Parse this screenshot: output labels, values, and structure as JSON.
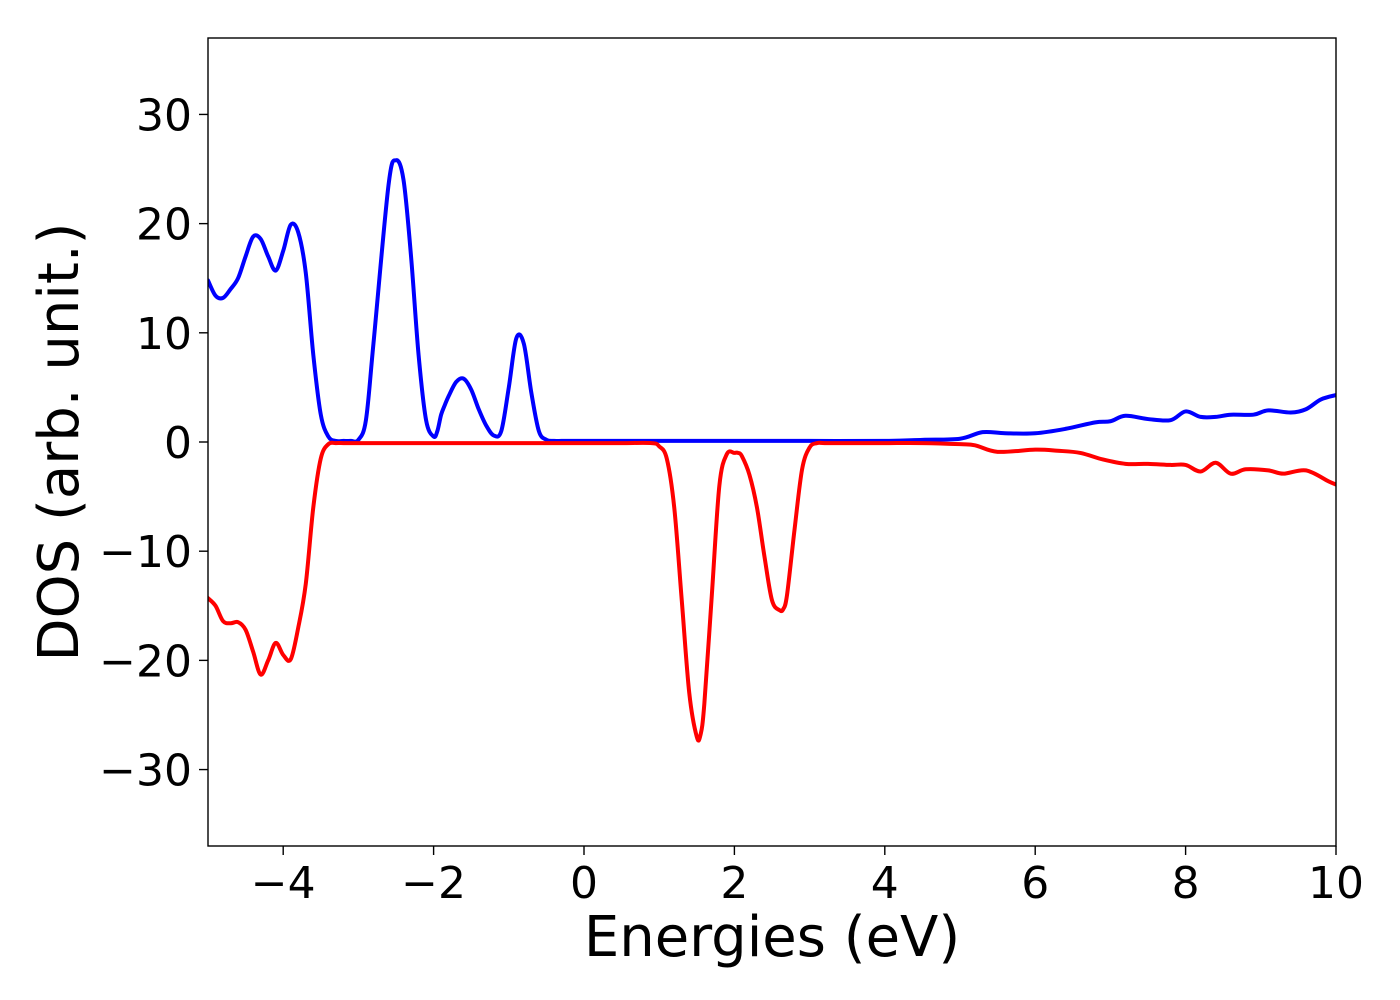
{
  "chart_data": {
    "type": "line",
    "title": "",
    "xlabel": "Energies (eV)",
    "ylabel": "DOS (arb. unit.)",
    "xlim": [
      -5,
      10
    ],
    "ylim": [
      -37,
      37
    ],
    "xticks": [
      -4,
      -2,
      0,
      2,
      4,
      6,
      8,
      10
    ],
    "xtick_labels": [
      "−4",
      "−2",
      "0",
      "2",
      "4",
      "6",
      "8",
      "10"
    ],
    "yticks": [
      30,
      20,
      10,
      0,
      -10,
      -20,
      -30
    ],
    "ytick_labels": [
      "30",
      "20",
      "10",
      "0",
      "−10",
      "−20",
      "−30"
    ],
    "grid": false,
    "legend": "none",
    "series": [
      {
        "color": "#0000ff",
        "x": [
          -5.0,
          -4.9,
          -4.8,
          -4.7,
          -4.6,
          -4.5,
          -4.4,
          -4.3,
          -4.2,
          -4.1,
          -4.0,
          -3.9,
          -3.8,
          -3.7,
          -3.6,
          -3.5,
          -3.4,
          -3.3,
          -3.2,
          -3.1,
          -3.0,
          -2.9,
          -2.8,
          -2.6,
          -2.5,
          -2.4,
          -2.3,
          -2.2,
          -2.1,
          -2.0,
          -1.95,
          -1.9,
          -1.85,
          -1.8,
          -1.7,
          -1.6,
          -1.5,
          -1.4,
          -1.3,
          -1.2,
          -1.1,
          -1.0,
          -0.9,
          -0.8,
          -0.7,
          -0.6,
          -0.5,
          -0.4,
          -0.3,
          -0.2,
          -0.1,
          0.0,
          0.1,
          0.2,
          0.3,
          0.4,
          0.5,
          0.55,
          0.6,
          0.7,
          0.8,
          0.9,
          1.0,
          1.5,
          2.0,
          3.0,
          4.0,
          4.5,
          5.0,
          5.3,
          5.6,
          6.0,
          6.4,
          6.8,
          7.0,
          7.2,
          7.5,
          7.8,
          8.0,
          8.2,
          8.4,
          8.6,
          8.9,
          9.1,
          9.4,
          9.6,
          9.8,
          10.0
        ],
        "y": [
          14.8,
          13.4,
          13.2,
          14.0,
          15.0,
          17.0,
          18.8,
          18.6,
          17.0,
          15.7,
          17.5,
          19.9,
          19.2,
          15.5,
          8.0,
          2.5,
          0.5,
          0.1,
          0.1,
          0.1,
          0.2,
          2.0,
          9.0,
          23.5,
          25.8,
          24.0,
          17.0,
          8.0,
          2.0,
          0.5,
          1.0,
          2.5,
          3.4,
          4.2,
          5.5,
          5.8,
          4.8,
          3.0,
          1.5,
          0.6,
          1.0,
          5.0,
          9.5,
          9.0,
          4.5,
          1.0,
          0.2,
          0.1,
          0.1,
          0.1,
          0.1,
          0.1,
          0.1,
          0.1,
          0.1,
          0.1,
          0.1,
          0.1,
          0.1,
          0.1,
          0.1,
          0.1,
          0.1,
          0.1,
          0.1,
          0.1,
          0.1,
          0.2,
          0.3,
          0.9,
          0.8,
          0.8,
          1.2,
          1.8,
          1.9,
          2.4,
          2.1,
          2.0,
          2.8,
          2.3,
          2.3,
          2.5,
          2.5,
          2.9,
          2.7,
          3.0,
          3.9,
          4.3
        ]
      },
      {
        "color": "#ff0000",
        "x": [
          -5.0,
          -4.9,
          -4.8,
          -4.7,
          -4.6,
          -4.5,
          -4.4,
          -4.3,
          -4.2,
          -4.1,
          -4.0,
          -3.9,
          -3.8,
          -3.7,
          -3.6,
          -3.5,
          -3.4,
          -3.3,
          -3.2,
          -3.1,
          -3.0,
          -2.9,
          -2.8,
          -2.7,
          -2.6,
          -2.5,
          -2.0,
          -1.0,
          0.0,
          0.5,
          0.9,
          1.0,
          1.1,
          1.2,
          1.3,
          1.4,
          1.5,
          1.55,
          1.6,
          1.7,
          1.8,
          1.9,
          2.0,
          2.05,
          2.1,
          2.2,
          2.3,
          2.4,
          2.5,
          2.6,
          2.65,
          2.7,
          2.8,
          2.9,
          3.0,
          3.1,
          3.2,
          3.5,
          4.0,
          4.5,
          5.0,
          5.2,
          5.5,
          6.0,
          6.3,
          6.6,
          6.9,
          7.2,
          7.5,
          7.8,
          8.0,
          8.2,
          8.4,
          8.6,
          8.8,
          9.1,
          9.3,
          9.6,
          9.9,
          10.0
        ],
        "y": [
          -14.3,
          -15.0,
          -16.4,
          -16.6,
          -16.5,
          -17.2,
          -19.2,
          -21.3,
          -20.0,
          -18.4,
          -19.5,
          -19.9,
          -17.0,
          -13.0,
          -6.0,
          -1.5,
          -0.2,
          -0.1,
          -0.1,
          -0.1,
          -0.1,
          -0.1,
          -0.1,
          -0.1,
          -0.1,
          -0.1,
          -0.1,
          -0.1,
          -0.1,
          -0.1,
          -0.1,
          -0.4,
          -1.5,
          -6.0,
          -14.5,
          -23.0,
          -27.0,
          -26.8,
          -24.0,
          -14.0,
          -4.0,
          -1.1,
          -1.0,
          -1.0,
          -1.3,
          -3.0,
          -6.0,
          -10.5,
          -14.5,
          -15.4,
          -15.3,
          -14.0,
          -8.0,
          -2.5,
          -0.5,
          -0.1,
          -0.1,
          -0.1,
          -0.1,
          -0.1,
          -0.2,
          -0.3,
          -0.9,
          -0.7,
          -0.8,
          -1.0,
          -1.6,
          -2.0,
          -2.0,
          -2.1,
          -2.1,
          -2.7,
          -1.9,
          -2.9,
          -2.5,
          -2.6,
          -2.9,
          -2.6,
          -3.6,
          -3.9
        ]
      }
    ]
  }
}
